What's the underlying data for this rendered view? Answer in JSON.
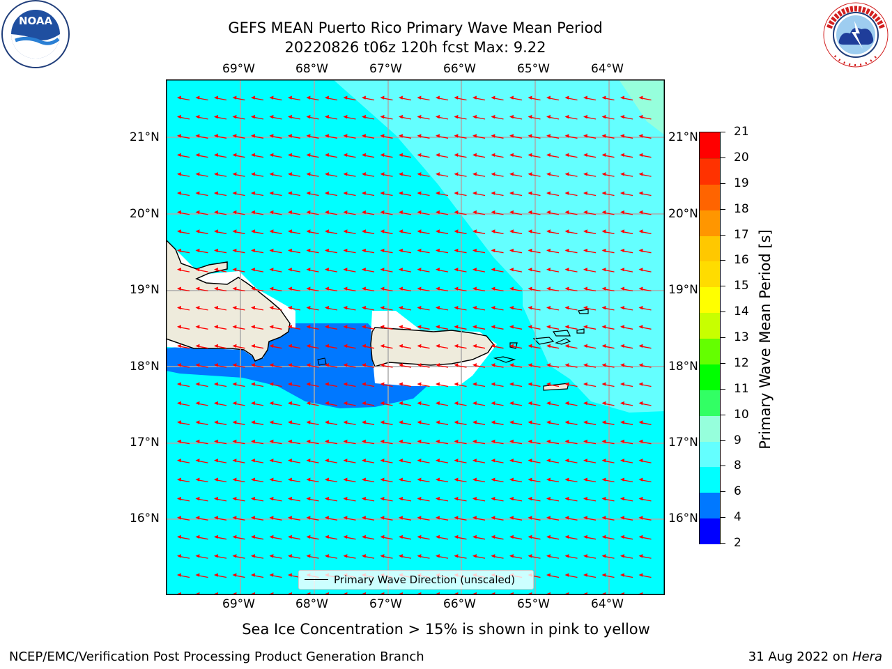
{
  "header": {
    "title_line1": "GEFS MEAN Puerto Rico Primary Wave Mean Period",
    "title_line2": "20220826 t06z 120h fcst   Max: 9.22"
  },
  "logos": {
    "left": {
      "icon": "noaa-logo",
      "text": "NOAA",
      "ring_text": "NATIONAL OCEANIC AND ATMOSPHERIC ADMINISTRATION · U.S. DEPARTMENT OF COMMERCE"
    },
    "right": {
      "icon": "nws-logo",
      "ring_text": "NATIONAL WEATHER SERVICE"
    }
  },
  "map": {
    "lon_ticks": [
      "69°W",
      "68°W",
      "67°W",
      "66°W",
      "65°W",
      "64°W"
    ],
    "lat_ticks": [
      "21°N",
      "20°N",
      "19°N",
      "18°N",
      "17°N",
      "16°N"
    ],
    "arrow_color": "#ff0000",
    "gridlines": true,
    "legend_label": "Primary Wave Direction (unscaled)",
    "land_color": "#eeebdc",
    "coast_color": "#000000"
  },
  "colorbar": {
    "label": "Primary Wave Mean Period [s]",
    "ticks": [
      "2",
      "4",
      "6",
      "8",
      "9",
      "10",
      "11",
      "12",
      "13",
      "14",
      "15",
      "16",
      "17",
      "18",
      "19",
      "20",
      "21"
    ],
    "colors": [
      "#0000ff",
      "#0078ff",
      "#00ffff",
      "#64ffff",
      "#96ffdc",
      "#32ff64",
      "#00ff00",
      "#64ff00",
      "#c8ff00",
      "#ffff00",
      "#ffdc00",
      "#ffc800",
      "#ff9600",
      "#ff6400",
      "#ff3200",
      "#ff0000"
    ]
  },
  "caption": "Sea Ice Concentration > 15% is shown in pink to yellow",
  "footer": {
    "left": "NCEP/EMC/Verification Post Processing Product Generation Branch",
    "date": "31 Aug 2022 on ",
    "machine": "Hera"
  }
}
